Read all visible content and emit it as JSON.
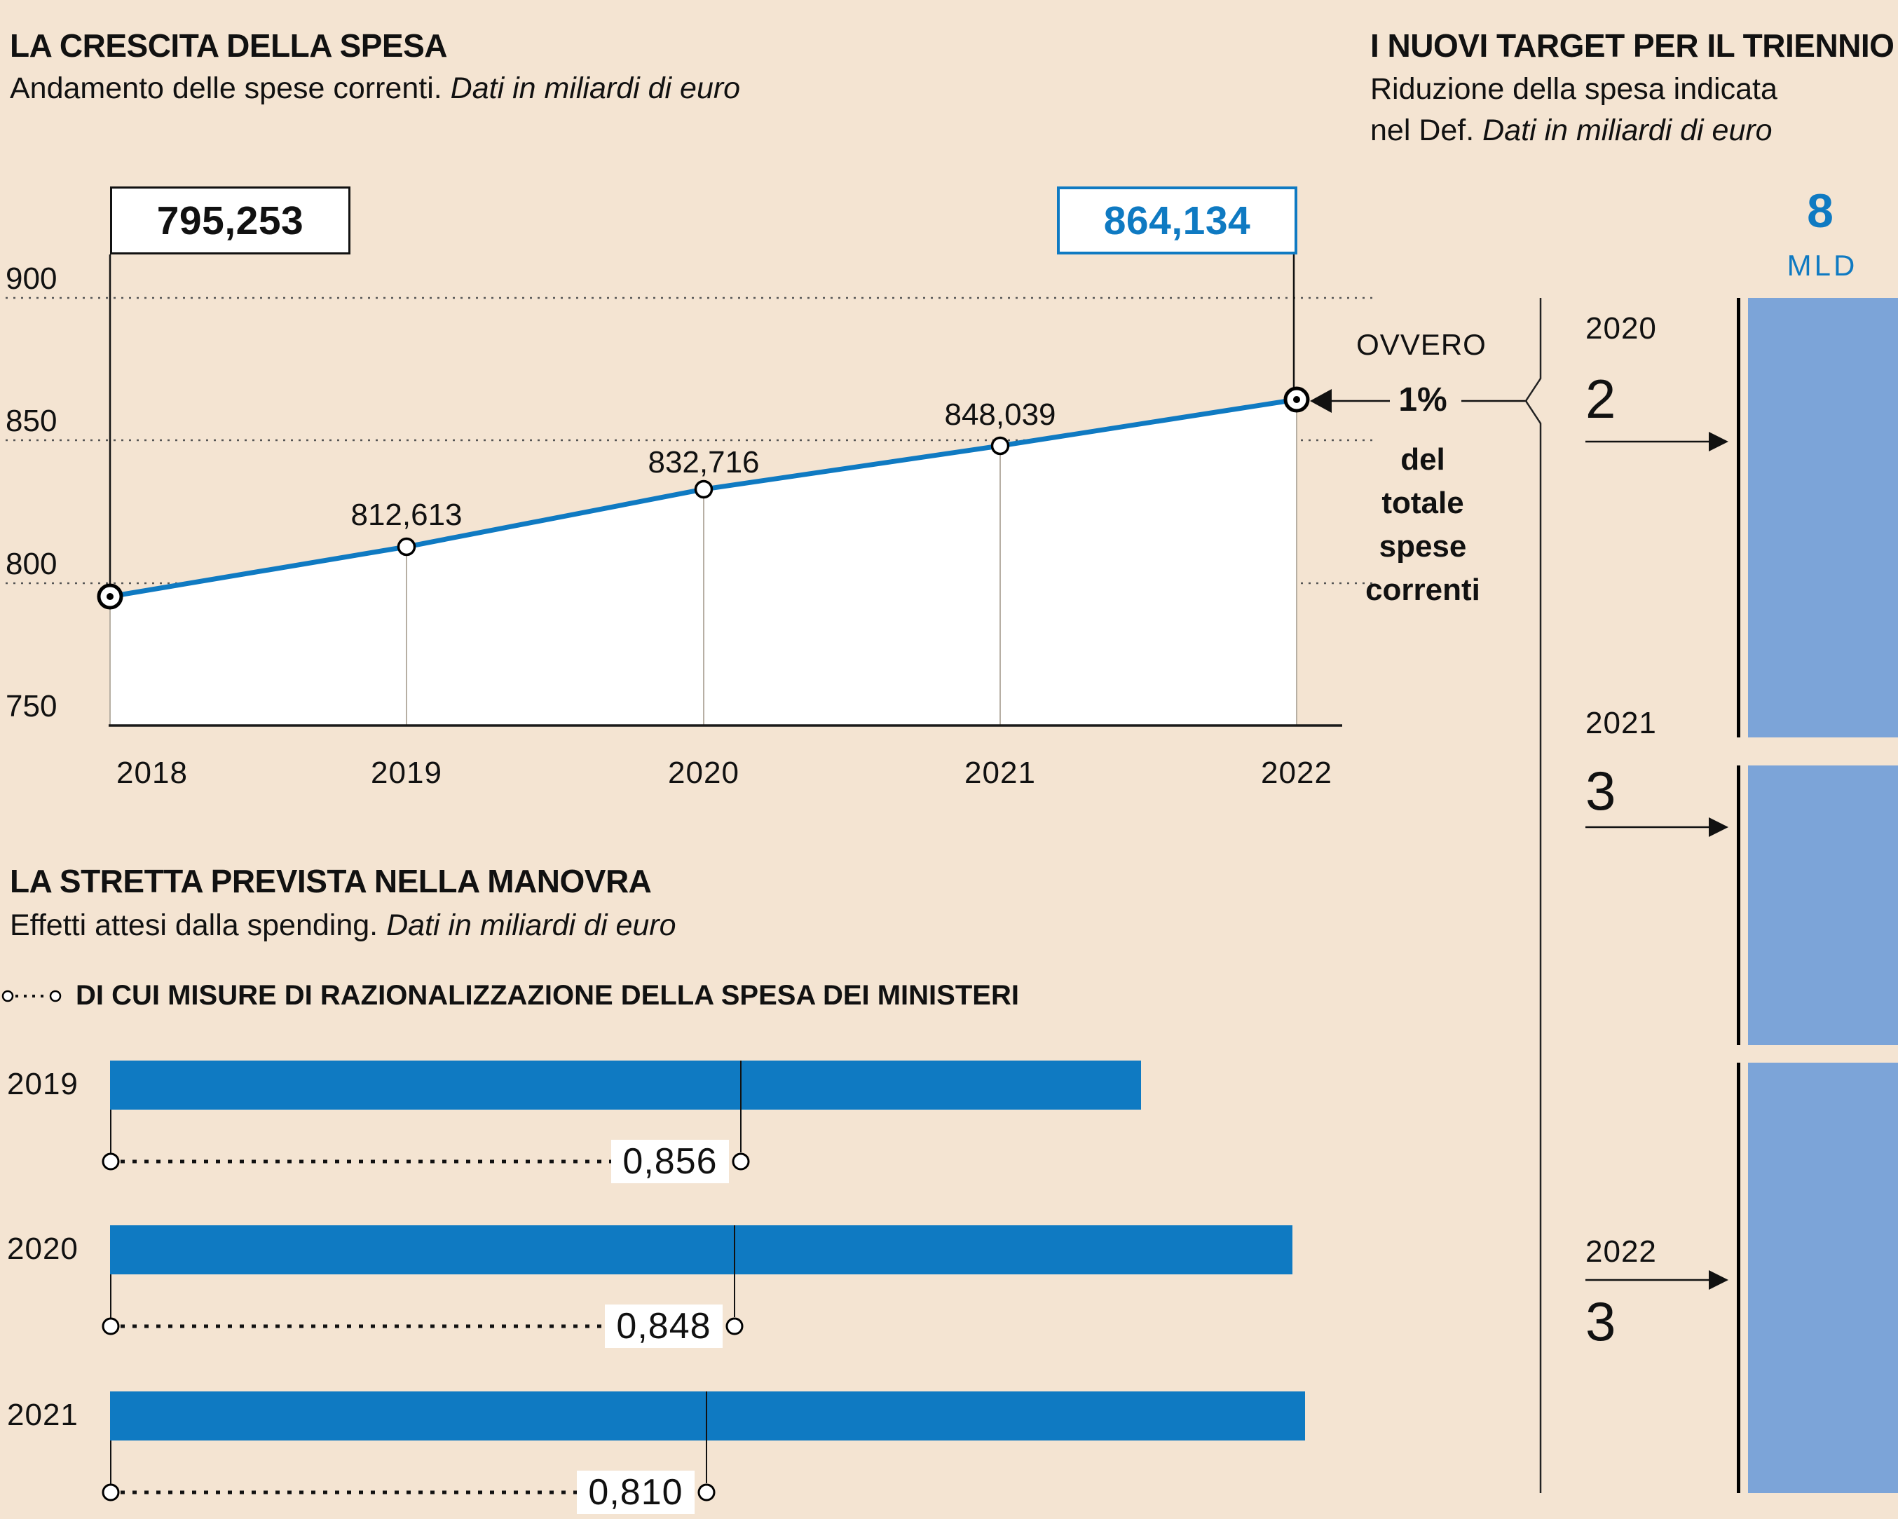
{
  "palette": {
    "background": "#f4e4d2",
    "azure": "#0f7ac2",
    "light_blue": "#7ca4d8",
    "ink": "#111111",
    "dropline_gray": "#b7afa4"
  },
  "chart_data": [
    {
      "type": "line",
      "title": "LA CRESCITA DELLA SPESA",
      "subtitle": "Andamento delle spese correnti.",
      "subtitle_note": "Dati in miliardi di euro",
      "x": [
        "2018",
        "2019",
        "2020",
        "2021",
        "2022"
      ],
      "values": [
        795.253,
        812.613,
        832.716,
        848.039,
        864.134
      ],
      "labels": [
        "795,253",
        "812,613",
        "832,716",
        "848,039",
        "864,134"
      ],
      "yticks": [
        750,
        800,
        850,
        900
      ],
      "ytick_labels": [
        "750",
        "800",
        "850",
        "900"
      ],
      "ylim": [
        750,
        917
      ],
      "grid": "dotted-horizontal",
      "annotation": {
        "ovvero": "OVVERO",
        "pct": "1%",
        "lines": [
          "del",
          "totale",
          "spese",
          "correnti"
        ]
      }
    },
    {
      "type": "bar",
      "title": "I NUOVI TARGET PER IL TRIENNIO",
      "subtitle": "Riduzione della spesa indicata",
      "subtitle2": "nel Def.",
      "subtitle_note": "Dati in miliardi di euro",
      "unit_value": "8",
      "unit_label": "MLD",
      "categories": [
        "2020",
        "2021",
        "2022"
      ],
      "values": [
        2,
        3,
        3
      ],
      "value_labels": [
        "2",
        "3",
        "3"
      ]
    },
    {
      "type": "bar",
      "title": "LA STRETTA PREVISTA NELLA MANOVRA",
      "subtitle": "Effetti attesi dalla spending.",
      "subtitle_note": "Dati in miliardi di euro",
      "legend": "DI CUI MISURE DI RAZIONALIZZAZIONE DELLA SPESA DEI MINISTERI",
      "categories": [
        "2019",
        "2020",
        "2021"
      ],
      "totals_estimated": [
        1.4,
        1.605,
        1.622
      ],
      "di_cui_values": [
        0.856,
        0.848,
        0.81
      ],
      "di_cui_labels": [
        "0,856",
        "0,848",
        "0,810"
      ]
    }
  ]
}
